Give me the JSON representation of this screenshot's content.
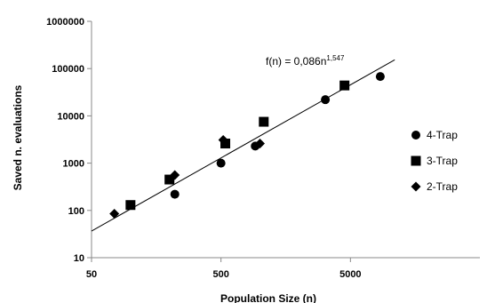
{
  "chart_data": {
    "type": "scatter",
    "xlabel": "Population Size (n)",
    "ylabel": "Saved n. evaluations",
    "xscale": "log",
    "yscale": "log",
    "xlim": [
      50,
      50000
    ],
    "ylim": [
      10,
      1000000
    ],
    "x_ticks": [
      "50",
      "500",
      "5000"
    ],
    "x_tick_values": [
      50,
      500,
      5000
    ],
    "y_ticks": [
      "10",
      "100",
      "1000",
      "10000",
      "100000",
      "1000000"
    ],
    "y_tick_values": [
      10,
      100,
      1000,
      10000,
      100000,
      1000000
    ],
    "grid": false,
    "legend_position": "right",
    "series": [
      {
        "name": "4-Trap",
        "marker": "circle",
        "color": "#000000",
        "x": [
          220,
          500,
          920,
          3200,
          8500
        ],
        "y": [
          220,
          1000,
          2300,
          22000,
          68000
        ]
      },
      {
        "name": "3-Trap",
        "marker": "square",
        "color": "#000000",
        "x": [
          100,
          200,
          540,
          1070,
          4500
        ],
        "y": [
          130,
          450,
          2600,
          7500,
          44000
        ]
      },
      {
        "name": "2-Trap",
        "marker": "diamond",
        "color": "#000000",
        "x": [
          75,
          220,
          520,
          1000
        ],
        "y": [
          85,
          560,
          3100,
          2600
        ]
      }
    ],
    "trendline": {
      "label_prefix": "f(n) = 0,086n",
      "label_exponent": "1,547",
      "coefficient": 0.086,
      "exponent": 1.547,
      "x_range": [
        50,
        11000
      ]
    }
  }
}
